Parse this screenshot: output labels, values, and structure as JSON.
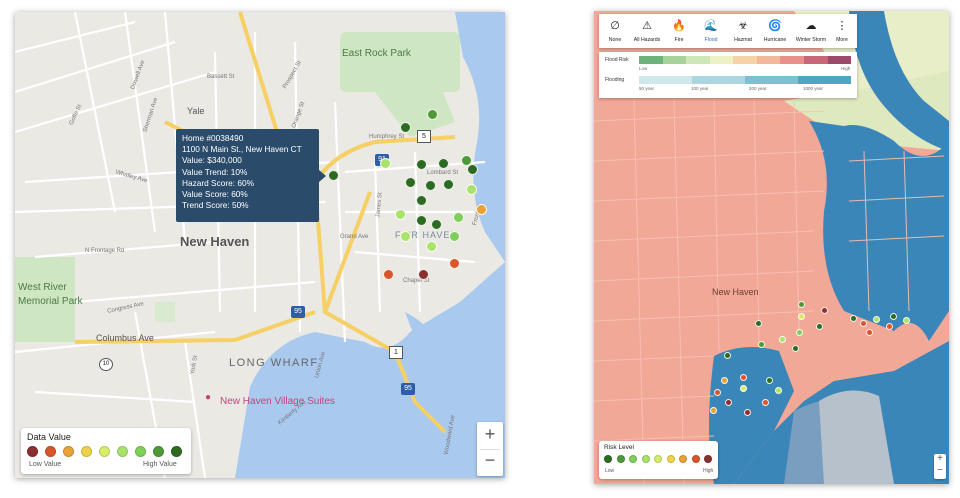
{
  "left_map": {
    "labels": {
      "new_haven": "New Haven",
      "east_rock_park": "East Rock Park",
      "fair_haven": "FAIR HAVEN",
      "west_river": "West River",
      "memorial_park": "Memorial Park",
      "long_wharf": "LONG WHARF",
      "village_suites": "New Haven Village Suites",
      "yale": "Yale",
      "columbus_ave": "Columbus Ave",
      "congress_ave": "Congress Ave",
      "whalley_ave": "Whalley Ave",
      "ferry_st": "Ferry St",
      "chapel_st": "Chapel St",
      "grand_ave": "Grand Ave",
      "lombard_st": "Lombard St",
      "humphrey_st": "Humphrey St",
      "bassett_st": "Bassett St",
      "prospect_st": "Prospect St",
      "dixwell_ave": "Dixwell Ave",
      "goffe_st": "Goffe St",
      "sherman_ave": "Sherman Ave",
      "orange_st": "Orange St",
      "james_st": "James St",
      "front_st": "Front St",
      "woodward_ave": "Woodward Ave",
      "n_frontage_rd": "N Frontage Rd",
      "york_st": "York St",
      "union_ave": "Union Ave",
      "kimberly_ave": "Kimberly Ave"
    },
    "shields": {
      "i91": "91",
      "i95": "95",
      "i95b": "95",
      "us1": "1",
      "r10": "10",
      "r5": "5"
    },
    "tooltip": {
      "line1": "Home #0038490",
      "line2": "1100 N Main St., New Haven CT",
      "line3": "Value: $340,000",
      "line4": "Value Trend: 10%",
      "line5": "Hazard Score: 60%",
      "line6": "Value Score: 60%",
      "line7": "Trend Score: 50%"
    },
    "legend": {
      "title": "Data Value",
      "low": "Low Value",
      "high": "High Value",
      "swatches": [
        "#8b2f2f",
        "#d9552a",
        "#e8a237",
        "#f0d24a",
        "#d8ec6a",
        "#a9e36b",
        "#7fcf5a",
        "#4f9a38",
        "#2e6b22"
      ]
    },
    "zoom": {
      "plus": "+",
      "minus": "−"
    }
  },
  "right_map": {
    "toolbar": [
      {
        "icon": "∅",
        "label": "None"
      },
      {
        "icon": "⚠",
        "label": "All Hazards"
      },
      {
        "icon": "🔥",
        "label": "Fire"
      },
      {
        "icon": "🌊",
        "label": "Flood"
      },
      {
        "icon": "☣",
        "label": "Hazmat"
      },
      {
        "icon": "🌀",
        "label": "Hurricane"
      },
      {
        "icon": "☁",
        "label": "Winter Storm"
      },
      {
        "icon": "⋮",
        "label": "More"
      }
    ],
    "flood_risk": {
      "title": "Flood Risk",
      "low": "Low",
      "high": "High",
      "colors": [
        "#6db27a",
        "#a6d39a",
        "#cde7b9",
        "#eef1c2",
        "#f5d3a6",
        "#f2b89a",
        "#e9908a",
        "#c86777",
        "#9c4a6c"
      ]
    },
    "flooding": {
      "title": "Flooding",
      "ticks": [
        "50 year",
        "100 year",
        "200 year",
        "1000 year"
      ],
      "colors": [
        "#cfe8ec",
        "#a9d6e0",
        "#7dc0d2",
        "#4fa6c3"
      ]
    },
    "labels": {
      "new_haven": "New Haven"
    },
    "legend": {
      "title": "Risk Level",
      "low": "Low",
      "high": "High",
      "swatches": [
        "#2e6b22",
        "#4f9a38",
        "#7fcf5a",
        "#a9e36b",
        "#d8ec6a",
        "#f0d24a",
        "#e8a237",
        "#d9552a",
        "#8b2f2f"
      ]
    },
    "zoom": {
      "plus": "+",
      "minus": "−"
    }
  }
}
